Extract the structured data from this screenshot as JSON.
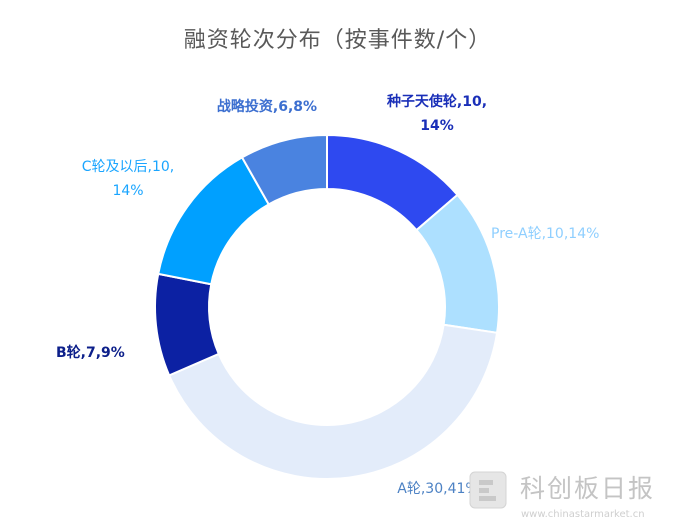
{
  "chart_data": {
    "type": "pie",
    "variant": "donut",
    "title": "融资轮次分布（按事件数/个）",
    "categories": [
      "种子天使轮",
      "Pre-A轮",
      "A轮",
      "B轮",
      "C轮及以后",
      "战略投资"
    ],
    "values": [
      10,
      10,
      30,
      7,
      10,
      6
    ],
    "percent_labels": [
      "14%",
      "14%",
      "41%",
      "9%",
      "14%",
      "8%"
    ],
    "data_labels": [
      [
        "种子天使轮,10,",
        "14%"
      ],
      [
        "Pre-A轮,10,14%"
      ],
      [
        "A轮,30,41%"
      ],
      [
        "B轮,7,9%"
      ],
      [
        "C轮及以后,10,",
        "14%"
      ],
      [
        "战略投资,6,8%"
      ]
    ],
    "colors": [
      "#2e49f0",
      "#ade0ff",
      "#e3ecfa",
      "#0c21a3",
      "#00a0ff",
      "#4a83e0"
    ],
    "label_colors": [
      "#1a2fb8",
      "#8fcfff",
      "#4d82c4",
      "#0c1f8a",
      "#1aa5ff",
      "#3c6fd0"
    ],
    "legend": "none"
  },
  "watermark": {
    "text": "科创板日报",
    "url": "www.chinastarmarket.cn"
  }
}
